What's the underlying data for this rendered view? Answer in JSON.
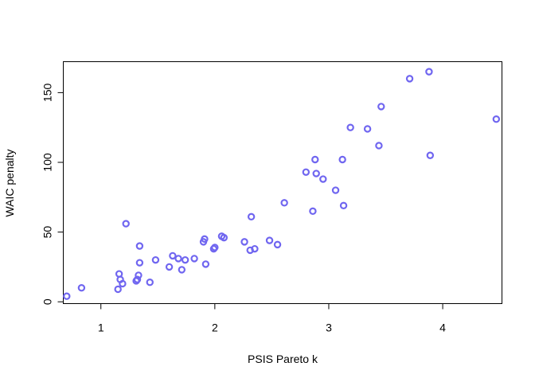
{
  "chart_data": {
    "type": "scatter",
    "xlabel": "PSIS Pareto k",
    "ylabel": "WAIC penalty",
    "xlim": [
      0.67,
      4.52
    ],
    "ylim": [
      -1.3,
      172.2
    ],
    "xticks": [
      1,
      2,
      3,
      4
    ],
    "yticks": [
      0,
      50,
      100,
      150
    ],
    "grid": false,
    "legend": "none",
    "point_color": "#7066f0",
    "x": [
      0.7,
      0.83,
      1.15,
      1.16,
      1.17,
      1.19,
      1.22,
      1.31,
      1.32,
      1.33,
      1.34,
      1.34,
      1.43,
      1.48,
      1.6,
      1.63,
      1.68,
      1.71,
      1.74,
      1.82,
      1.9,
      1.91,
      1.92,
      1.99,
      2.0,
      2.06,
      2.08,
      2.26,
      2.31,
      2.32,
      2.35,
      2.48,
      2.55,
      2.61,
      2.8,
      2.86,
      2.88,
      2.89,
      2.95,
      3.06,
      3.12,
      3.13,
      3.19,
      3.34,
      3.44,
      3.46,
      3.71,
      3.88,
      3.89,
      4.47
    ],
    "y": [
      4,
      10,
      9,
      20,
      16,
      13,
      56,
      15,
      16,
      19,
      28,
      40,
      14,
      30,
      25,
      33,
      31,
      23,
      30,
      31,
      43,
      45,
      27,
      38,
      39,
      47,
      46,
      43,
      37,
      61,
      38,
      44,
      41,
      71,
      93,
      65,
      102,
      92,
      88,
      80,
      102,
      69,
      125,
      124,
      112,
      140,
      160,
      165,
      105,
      131
    ]
  }
}
